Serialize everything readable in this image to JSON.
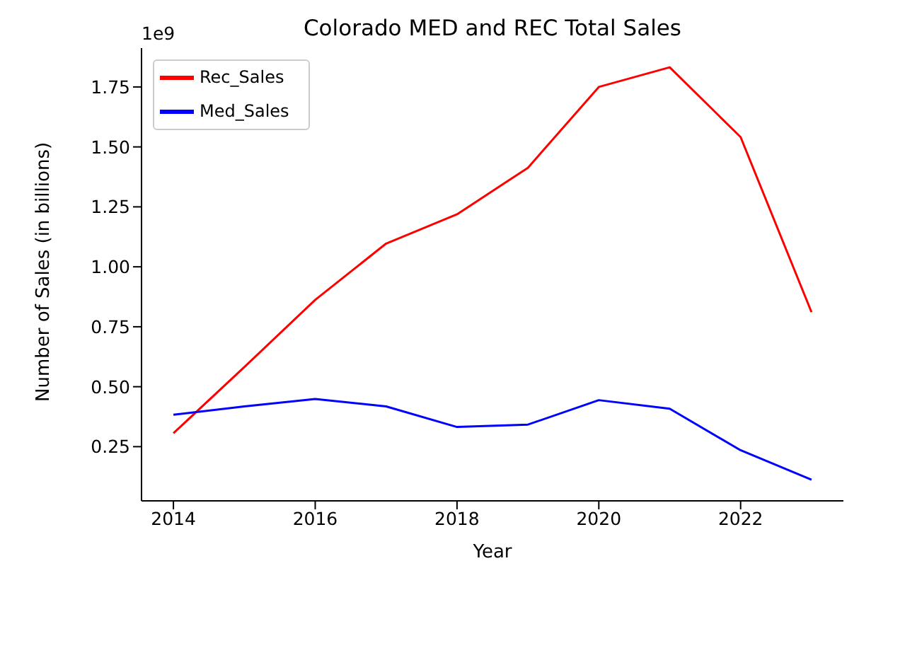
{
  "chart_data": {
    "type": "line",
    "title": "Colorado MED and REC Total Sales",
    "xlabel": "Year",
    "ylabel": "Number of Sales (in billions)",
    "annotations": [
      "1e9"
    ],
    "x": [
      2014,
      2015,
      2016,
      2017,
      2018,
      2019,
      2020,
      2021,
      2022,
      2023
    ],
    "series": [
      {
        "name": "Rec_Sales",
        "color": "#ff0000",
        "values": [
          0.306,
          0.582,
          0.862,
          1.097,
          1.219,
          1.413,
          1.75,
          1.832,
          1.541,
          0.811
        ]
      },
      {
        "name": "Med_Sales",
        "color": "#0000ff",
        "values": [
          0.383,
          0.418,
          0.449,
          0.418,
          0.332,
          0.342,
          0.444,
          0.408,
          0.235,
          0.112
        ]
      }
    ],
    "xlim": [
      2013.55,
      2023.45
    ],
    "xticks": [
      2014,
      2016,
      2018,
      2020,
      2022
    ],
    "ylim": [
      0.024,
      1.912
    ],
    "yticks": [
      0.25,
      {
        "value": 0.5,
        "label": "0.50"
      },
      0.75,
      {
        "value": 1,
        "label": "1.00"
      },
      1.25,
      {
        "value": 1.5,
        "label": "1.50"
      },
      1.75
    ],
    "legend": "top left",
    "marker": "none",
    "line_style": "solid"
  }
}
